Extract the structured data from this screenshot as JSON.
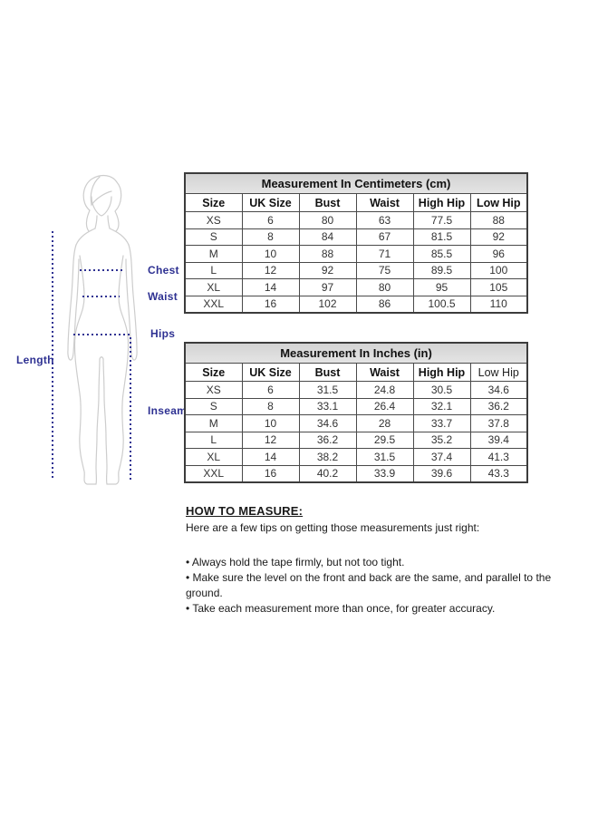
{
  "figure": {
    "labels": {
      "chest": "Chest",
      "waist": "Waist",
      "hips": "Hips",
      "length": "Length",
      "inseam": "Inseam"
    },
    "accent_color": "#2e3192",
    "outline_color": "#cdcdcd"
  },
  "tables": {
    "cm": {
      "title": "Measurement In Centimeters (cm)",
      "columns": [
        "Size",
        "UK Size",
        "Bust",
        "Waist",
        "High Hip",
        "Low Hip"
      ],
      "rows": [
        [
          "XS",
          "6",
          "80",
          "63",
          "77.5",
          "88"
        ],
        [
          "S",
          "8",
          "84",
          "67",
          "81.5",
          "92"
        ],
        [
          "M",
          "10",
          "88",
          "71",
          "85.5",
          "96"
        ],
        [
          "L",
          "12",
          "92",
          "75",
          "89.5",
          "100"
        ],
        [
          "XL",
          "14",
          "97",
          "80",
          "95",
          "105"
        ],
        [
          "XXL",
          "16",
          "102",
          "86",
          "100.5",
          "110"
        ]
      ]
    },
    "inches": {
      "title": "Measurement In Inches (in)",
      "columns": [
        "Size",
        "UK Size",
        "Bust",
        "Waist",
        "High Hip",
        "Low Hip"
      ],
      "rows": [
        [
          "XS",
          "6",
          "31.5",
          "24.8",
          "30.5",
          "34.6"
        ],
        [
          "S",
          "8",
          "33.1",
          "26.4",
          "32.1",
          "36.2"
        ],
        [
          "M",
          "10",
          "34.6",
          "28",
          "33.7",
          "37.8"
        ],
        [
          "L",
          "12",
          "36.2",
          "29.5",
          "35.2",
          "39.4"
        ],
        [
          "XL",
          "14",
          "38.2",
          "31.5",
          "37.4",
          "41.3"
        ],
        [
          "XXL",
          "16",
          "40.2",
          "33.9",
          "39.6",
          "43.3"
        ]
      ]
    }
  },
  "how_to_measure": {
    "heading": "HOW TO MEASURE:",
    "intro": "Here are a few tips on getting those measurements just right:",
    "tips": [
      "Always hold the tape firmly, but not too tight.",
      "Make sure the level on the front and back are the same, and parallel to the ground.",
      "Take each measurement more than once, for greater accuracy."
    ]
  }
}
